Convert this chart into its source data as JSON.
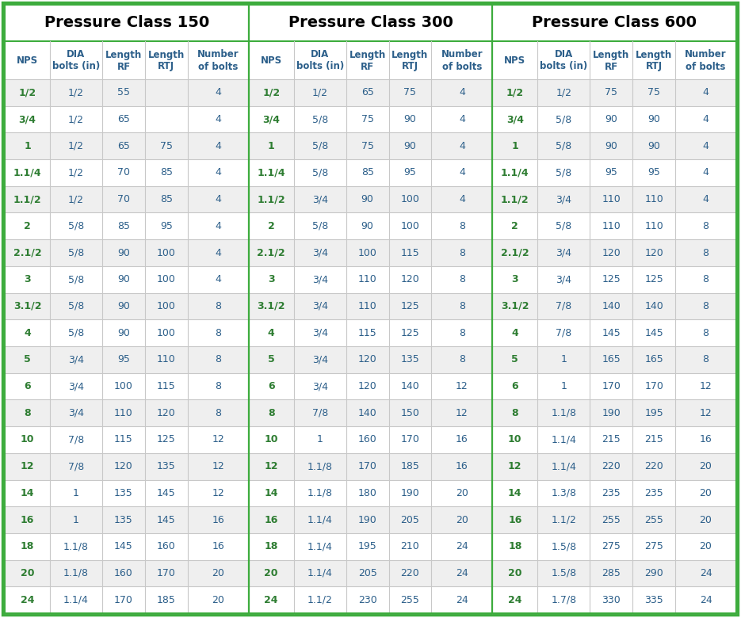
{
  "title_150": "Pressure Class 150",
  "title_300": "Pressure Class 300",
  "title_600": "Pressure Class 600",
  "col_headers_line1": [
    "NPS",
    "DIA",
    "Length",
    "Length",
    "Number"
  ],
  "col_headers_line2": [
    "",
    "bolts (in)",
    "RF",
    "RTJ",
    "of bolts"
  ],
  "class150": [
    [
      "1/2",
      "1/2",
      "55",
      "",
      "4"
    ],
    [
      "3/4",
      "1/2",
      "65",
      "",
      "4"
    ],
    [
      "1",
      "1/2",
      "65",
      "75",
      "4"
    ],
    [
      "1.1/4",
      "1/2",
      "70",
      "85",
      "4"
    ],
    [
      "1.1/2",
      "1/2",
      "70",
      "85",
      "4"
    ],
    [
      "2",
      "5/8",
      "85",
      "95",
      "4"
    ],
    [
      "2.1/2",
      "5/8",
      "90",
      "100",
      "4"
    ],
    [
      "3",
      "5/8",
      "90",
      "100",
      "4"
    ],
    [
      "3.1/2",
      "5/8",
      "90",
      "100",
      "8"
    ],
    [
      "4",
      "5/8",
      "90",
      "100",
      "8"
    ],
    [
      "5",
      "3/4",
      "95",
      "110",
      "8"
    ],
    [
      "6",
      "3/4",
      "100",
      "115",
      "8"
    ],
    [
      "8",
      "3/4",
      "110",
      "120",
      "8"
    ],
    [
      "10",
      "7/8",
      "115",
      "125",
      "12"
    ],
    [
      "12",
      "7/8",
      "120",
      "135",
      "12"
    ],
    [
      "14",
      "1",
      "135",
      "145",
      "12"
    ],
    [
      "16",
      "1",
      "135",
      "145",
      "16"
    ],
    [
      "18",
      "1.1/8",
      "145",
      "160",
      "16"
    ],
    [
      "20",
      "1.1/8",
      "160",
      "170",
      "20"
    ],
    [
      "24",
      "1.1/4",
      "170",
      "185",
      "20"
    ]
  ],
  "class300": [
    [
      "1/2",
      "1/2",
      "65",
      "75",
      "4"
    ],
    [
      "3/4",
      "5/8",
      "75",
      "90",
      "4"
    ],
    [
      "1",
      "5/8",
      "75",
      "90",
      "4"
    ],
    [
      "1.1/4",
      "5/8",
      "85",
      "95",
      "4"
    ],
    [
      "1.1/2",
      "3/4",
      "90",
      "100",
      "4"
    ],
    [
      "2",
      "5/8",
      "90",
      "100",
      "8"
    ],
    [
      "2.1/2",
      "3/4",
      "100",
      "115",
      "8"
    ],
    [
      "3",
      "3/4",
      "110",
      "120",
      "8"
    ],
    [
      "3.1/2",
      "3/4",
      "110",
      "125",
      "8"
    ],
    [
      "4",
      "3/4",
      "115",
      "125",
      "8"
    ],
    [
      "5",
      "3/4",
      "120",
      "135",
      "8"
    ],
    [
      "6",
      "3/4",
      "120",
      "140",
      "12"
    ],
    [
      "8",
      "7/8",
      "140",
      "150",
      "12"
    ],
    [
      "10",
      "1",
      "160",
      "170",
      "16"
    ],
    [
      "12",
      "1.1/8",
      "170",
      "185",
      "16"
    ],
    [
      "14",
      "1.1/8",
      "180",
      "190",
      "20"
    ],
    [
      "16",
      "1.1/4",
      "190",
      "205",
      "20"
    ],
    [
      "18",
      "1.1/4",
      "195",
      "210",
      "24"
    ],
    [
      "20",
      "1.1/4",
      "205",
      "220",
      "24"
    ],
    [
      "24",
      "1.1/2",
      "230",
      "255",
      "24"
    ]
  ],
  "class600": [
    [
      "1/2",
      "1/2",
      "75",
      "75",
      "4"
    ],
    [
      "3/4",
      "5/8",
      "90",
      "90",
      "4"
    ],
    [
      "1",
      "5/8",
      "90",
      "90",
      "4"
    ],
    [
      "1.1/4",
      "5/8",
      "95",
      "95",
      "4"
    ],
    [
      "1.1/2",
      "3/4",
      "110",
      "110",
      "4"
    ],
    [
      "2",
      "5/8",
      "110",
      "110",
      "8"
    ],
    [
      "2.1/2",
      "3/4",
      "120",
      "120",
      "8"
    ],
    [
      "3",
      "3/4",
      "125",
      "125",
      "8"
    ],
    [
      "3.1/2",
      "7/8",
      "140",
      "140",
      "8"
    ],
    [
      "4",
      "7/8",
      "145",
      "145",
      "8"
    ],
    [
      "5",
      "1",
      "165",
      "165",
      "8"
    ],
    [
      "6",
      "1",
      "170",
      "170",
      "12"
    ],
    [
      "8",
      "1.1/8",
      "190",
      "195",
      "12"
    ],
    [
      "10",
      "1.1/4",
      "215",
      "215",
      "16"
    ],
    [
      "12",
      "1.1/4",
      "220",
      "220",
      "20"
    ],
    [
      "14",
      "1.3/8",
      "235",
      "235",
      "20"
    ],
    [
      "16",
      "1.1/2",
      "255",
      "255",
      "20"
    ],
    [
      "18",
      "1.5/8",
      "275",
      "275",
      "20"
    ],
    [
      "20",
      "1.5/8",
      "285",
      "290",
      "24"
    ],
    [
      "24",
      "1.7/8",
      "330",
      "335",
      "24"
    ]
  ],
  "border_color": "#3dac3d",
  "grid_color": "#c8c8c8",
  "title_text_color": "#000000",
  "header_text_color": "#2c5f8a",
  "nps_text_color": "#2e7d32",
  "cell_text_color": "#2c5f8a",
  "row_bg_even": "#efefef",
  "row_bg_odd": "#ffffff",
  "title_fontsize": 14,
  "header_fontsize": 8.5,
  "cell_fontsize": 9,
  "col_ratios": [
    0.185,
    0.215,
    0.175,
    0.175,
    0.25
  ]
}
